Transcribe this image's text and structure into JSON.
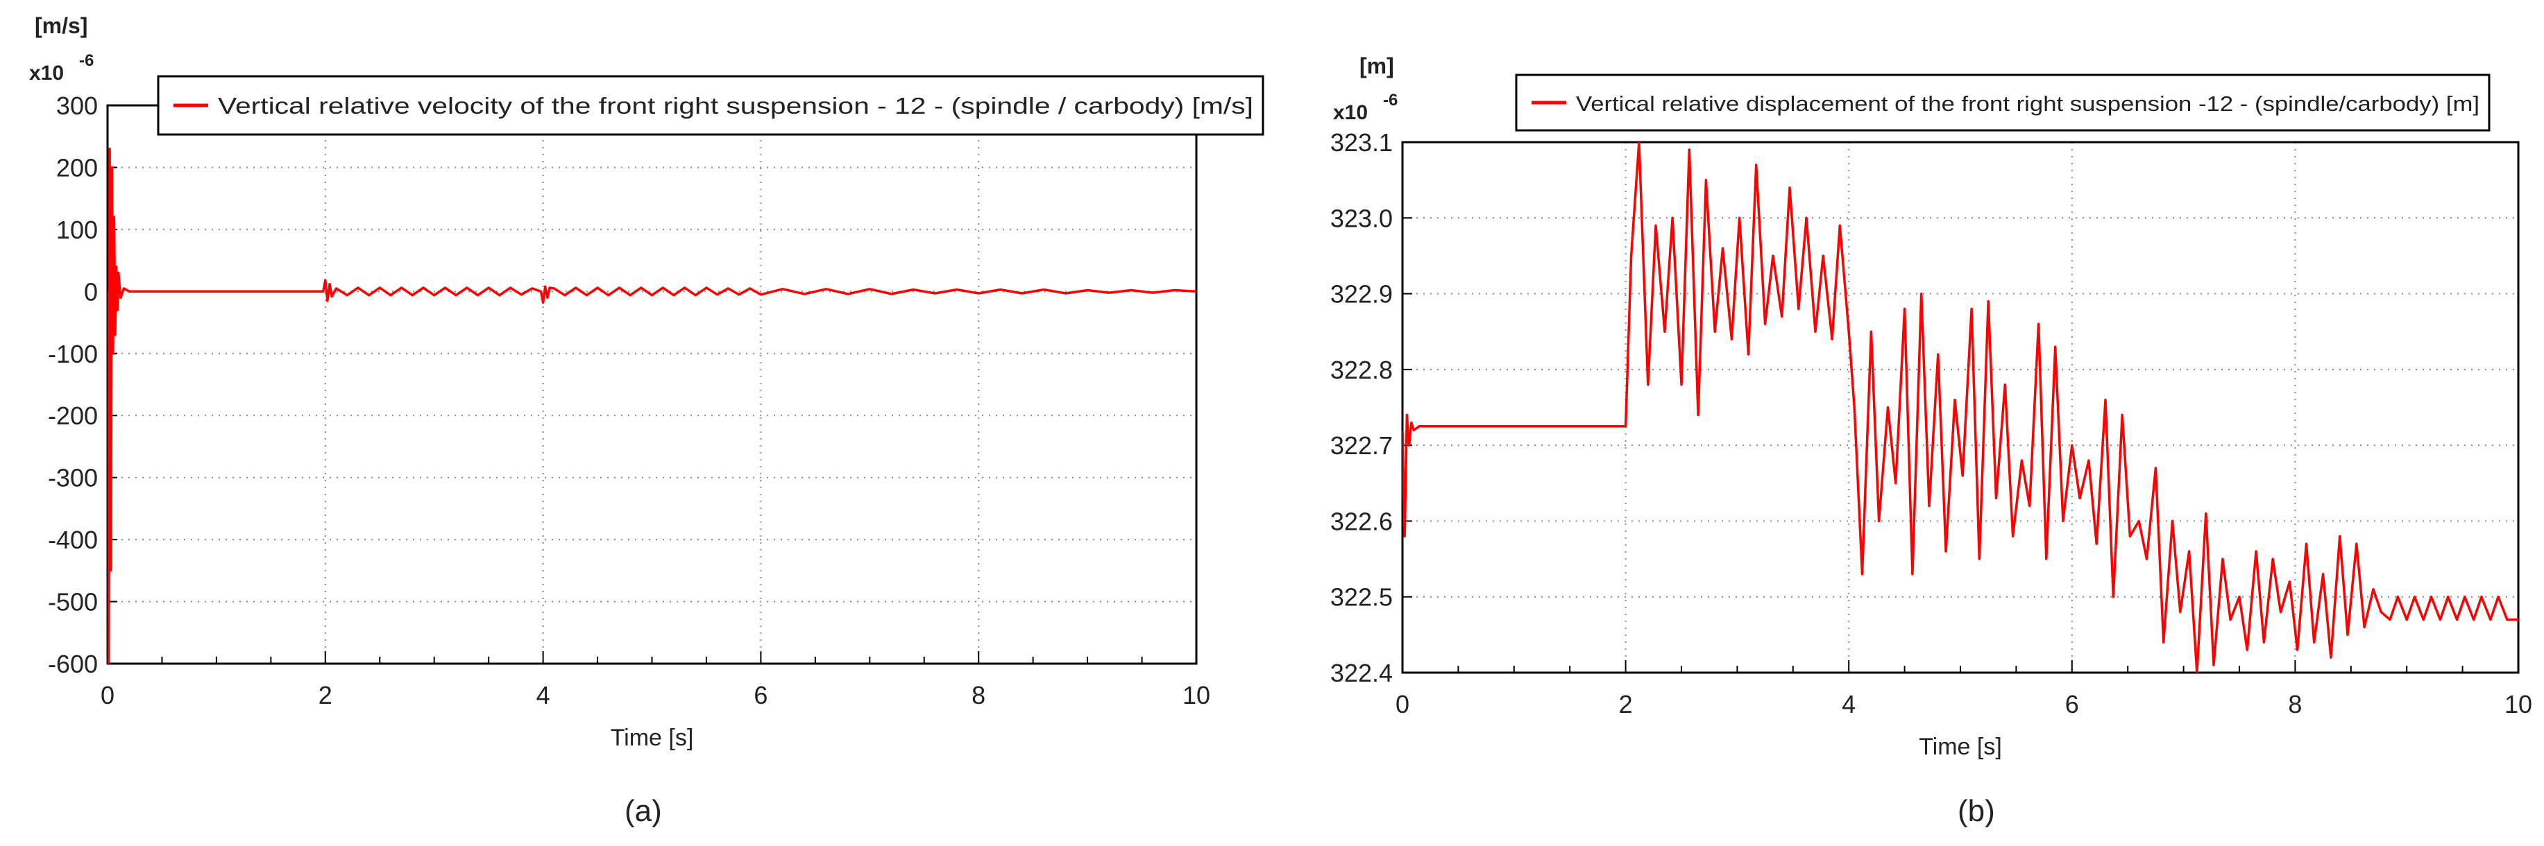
{
  "captions": [
    "(a)",
    "(b)"
  ],
  "colors": {
    "series": "#ff0000",
    "grid": "#888888",
    "frame": "#000000",
    "text": "#222222"
  },
  "chart_data": [
    {
      "type": "line",
      "unit_label": "[m/s]",
      "multiplier": "x10",
      "multiplier_exp": "-6",
      "legend": "Vertical relative velocity of the front right suspension - 12 - (spindle / carbody) [m/s]",
      "legend_position": "top-right",
      "xlabel": "Time [s]",
      "ylabel": "",
      "xlim": [
        0,
        10
      ],
      "ylim": [
        -600,
        300
      ],
      "x_ticks": [
        "0",
        "2",
        "4",
        "6",
        "8",
        "10"
      ],
      "y_ticks": [
        "300",
        "200",
        "100",
        "0",
        "-100",
        "-200",
        "-300",
        "-400",
        "-500",
        "-600"
      ],
      "grid": true,
      "series": [
        {
          "name": "Vertical relative velocity of the front right suspension - 12 - (spindle / carbody) [m/s]",
          "x": [
            0,
            0.01,
            0.02,
            0.03,
            0.04,
            0.05,
            0.06,
            0.07,
            0.08,
            0.09,
            0.1,
            0.12,
            0.15,
            0.2,
            0.5,
            1.0,
            1.5,
            1.98,
            2.0,
            2.02,
            2.04,
            2.06,
            2.1,
            2.2,
            2.3,
            2.4,
            2.5,
            2.6,
            2.7,
            2.8,
            2.9,
            3.0,
            3.1,
            3.2,
            3.3,
            3.4,
            3.5,
            3.6,
            3.7,
            3.8,
            3.9,
            3.98,
            4.0,
            4.02,
            4.04,
            4.06,
            4.1,
            4.2,
            4.3,
            4.4,
            4.5,
            4.6,
            4.7,
            4.8,
            4.9,
            5.0,
            5.1,
            5.2,
            5.3,
            5.4,
            5.5,
            5.6,
            5.7,
            5.8,
            5.9,
            6.0,
            6.2,
            6.4,
            6.6,
            6.8,
            7.0,
            7.2,
            7.4,
            7.6,
            7.8,
            8.0,
            8.2,
            8.4,
            8.6,
            8.8,
            9.0,
            9.2,
            9.4,
            9.6,
            9.8,
            10.0
          ],
          "y": [
            0,
            -600,
            230,
            -450,
            200,
            -100,
            120,
            -70,
            40,
            -30,
            30,
            -10,
            5,
            0,
            0,
            0,
            0,
            0,
            18,
            -15,
            12,
            -8,
            5,
            -6,
            6,
            -6,
            6,
            -6,
            6,
            -6,
            6,
            -6,
            6,
            -6,
            6,
            -6,
            6,
            -6,
            6,
            -5,
            5,
            0,
            -18,
            8,
            -10,
            6,
            5,
            -6,
            6,
            -6,
            6,
            -6,
            6,
            -6,
            6,
            -6,
            6,
            -6,
            6,
            -6,
            6,
            -5,
            5,
            -5,
            5,
            -5,
            4,
            -4,
            4,
            -4,
            4,
            -4,
            3,
            -3,
            3,
            -3,
            3,
            -3,
            3,
            -3,
            2,
            -2,
            2,
            -2,
            2,
            0
          ]
        }
      ]
    },
    {
      "type": "line",
      "unit_label": "[m]",
      "multiplier": "x10",
      "multiplier_exp": "-6",
      "legend": "Vertical relative displacement of the front right suspension -12 - (spindle/carbody) [m]",
      "legend_position": "top-right",
      "xlabel": "Time [s]",
      "ylabel": "",
      "xlim": [
        0,
        10
      ],
      "ylim": [
        322.4,
        323.1
      ],
      "x_ticks": [
        "0",
        "2",
        "4",
        "6",
        "8",
        "10"
      ],
      "y_ticks": [
        "323.1",
        "323.0",
        "322.9",
        "322.8",
        "322.7",
        "322.6",
        "322.5",
        "322.4"
      ],
      "grid": true,
      "series": [
        {
          "name": "Vertical relative displacement of the front right suspension -12 - (spindle/carbody) [m]",
          "x": [
            0,
            0.02,
            0.04,
            0.06,
            0.08,
            0.1,
            0.15,
            0.3,
            1.0,
            1.5,
            2.0,
            2.05,
            2.12,
            2.2,
            2.27,
            2.35,
            2.42,
            2.5,
            2.57,
            2.65,
            2.72,
            2.8,
            2.87,
            2.95,
            3.02,
            3.1,
            3.17,
            3.25,
            3.32,
            3.4,
            3.47,
            3.55,
            3.62,
            3.7,
            3.77,
            3.85,
            3.92,
            4.0,
            4.05,
            4.12,
            4.2,
            4.27,
            4.35,
            4.42,
            4.5,
            4.57,
            4.65,
            4.72,
            4.8,
            4.87,
            4.95,
            5.02,
            5.1,
            5.17,
            5.25,
            5.32,
            5.4,
            5.47,
            5.55,
            5.62,
            5.7,
            5.77,
            5.85,
            5.92,
            6.0,
            6.07,
            6.15,
            6.22,
            6.3,
            6.37,
            6.45,
            6.52,
            6.6,
            6.67,
            6.75,
            6.82,
            6.9,
            6.97,
            7.05,
            7.12,
            7.2,
            7.27,
            7.35,
            7.42,
            7.5,
            7.57,
            7.65,
            7.72,
            7.8,
            7.87,
            7.95,
            8.02,
            8.1,
            8.17,
            8.25,
            8.32,
            8.4,
            8.47,
            8.55,
            8.62,
            8.7,
            8.77,
            8.85,
            8.92,
            9.0,
            9.07,
            9.15,
            9.22,
            9.3,
            9.37,
            9.45,
            9.52,
            9.6,
            9.67,
            9.75,
            9.82,
            9.9,
            10.0
          ],
          "y": [
            322.72,
            322.58,
            322.74,
            322.7,
            322.73,
            322.72,
            322.725,
            322.725,
            322.725,
            322.725,
            322.725,
            322.95,
            323.1,
            322.78,
            322.99,
            322.85,
            323.0,
            322.78,
            323.09,
            322.74,
            323.05,
            322.85,
            322.96,
            322.84,
            323.0,
            322.82,
            323.07,
            322.86,
            322.95,
            322.87,
            323.04,
            322.88,
            323.0,
            322.85,
            322.95,
            322.84,
            322.99,
            322.85,
            322.75,
            322.53,
            322.85,
            322.6,
            322.75,
            322.65,
            322.88,
            322.53,
            322.9,
            322.62,
            322.82,
            322.56,
            322.76,
            322.66,
            322.88,
            322.55,
            322.89,
            322.63,
            322.78,
            322.58,
            322.68,
            322.62,
            322.86,
            322.55,
            322.83,
            322.6,
            322.7,
            322.63,
            322.68,
            322.57,
            322.76,
            322.5,
            322.74,
            322.58,
            322.6,
            322.55,
            322.67,
            322.44,
            322.6,
            322.48,
            322.56,
            322.4,
            322.61,
            322.41,
            322.55,
            322.47,
            322.5,
            322.43,
            322.56,
            322.44,
            322.55,
            322.48,
            322.52,
            322.43,
            322.57,
            322.44,
            322.53,
            322.42,
            322.58,
            322.45,
            322.57,
            322.46,
            322.51,
            322.48,
            322.47,
            322.5,
            322.47,
            322.5,
            322.47,
            322.5,
            322.47,
            322.5,
            322.47,
            322.5,
            322.47,
            322.5,
            322.47,
            322.5,
            322.47,
            322.47
          ]
        }
      ]
    }
  ]
}
